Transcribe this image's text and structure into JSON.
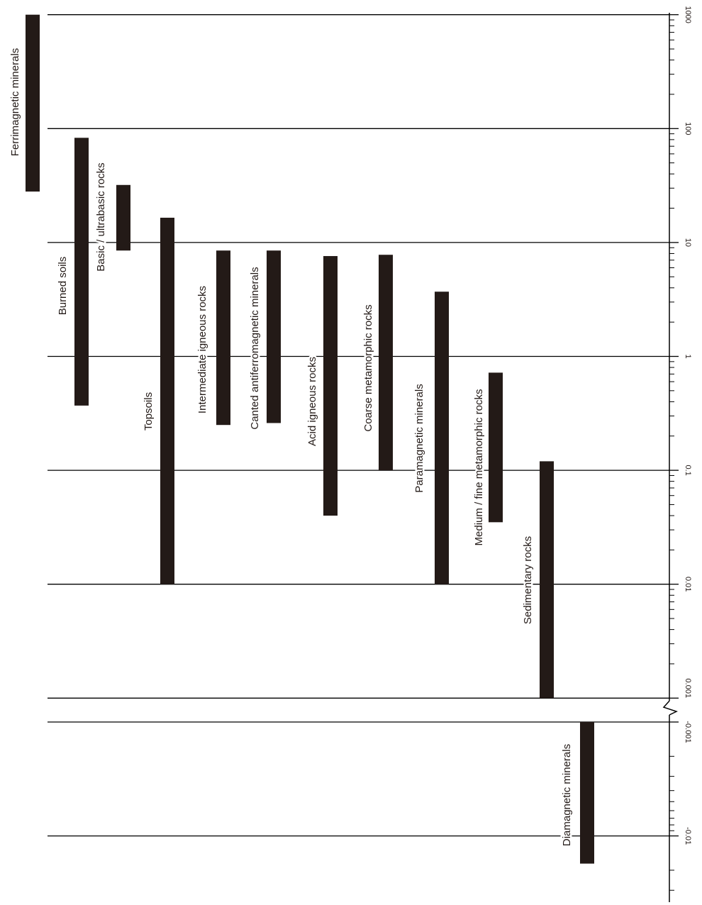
{
  "chart_data": {
    "type": "bar",
    "orientation": "rotated-90",
    "scale": "log",
    "grid": true,
    "bar_color": "#231a17",
    "line_color": "#000000",
    "positive_ticks": [
      {
        "value": 1000,
        "label": "1000"
      },
      {
        "value": 100,
        "label": "100"
      },
      {
        "value": 10,
        "label": "10"
      },
      {
        "value": 1,
        "label": "1"
      },
      {
        "value": 0.1,
        "label": "0.1"
      },
      {
        "value": 0.01,
        "label": "0.01"
      },
      {
        "value": 0.001,
        "label": "0.001"
      }
    ],
    "negative_ticks": [
      {
        "value": -0.001,
        "label": "-0.001"
      },
      {
        "value": -0.01,
        "label": "-0.01"
      }
    ],
    "axis_break": true,
    "series": [
      {
        "name": "Ferrimagnetic minerals",
        "min": 28,
        "max": 1000
      },
      {
        "name": "Burned soils",
        "min": 0.37,
        "max": 83
      },
      {
        "name": "Basic / ultrabasic rocks",
        "min": 8.5,
        "max": 32
      },
      {
        "name": "Topsoils",
        "min": 0.01,
        "max": 16.5
      },
      {
        "name": "Intermediate igneous rocks",
        "min": 0.25,
        "max": 8.5
      },
      {
        "name": "Canted antiferromagnetic minerals",
        "min": 0.26,
        "max": 8.5
      },
      {
        "name": "Acid igneous rocks",
        "min": 0.04,
        "max": 7.6
      },
      {
        "name": "Coarse metamorphic rocks",
        "min": 0.1,
        "max": 7.8
      },
      {
        "name": "Paramagnetic minerals",
        "min": 0.01,
        "max": 3.7
      },
      {
        "name": "Medium / fine metamorphic rocks",
        "min": 0.035,
        "max": 0.72
      },
      {
        "name": "Sedimentary rocks",
        "min": 0.001,
        "max": 0.12
      },
      {
        "name": "Diamagnetic minerals",
        "min": -0.0175,
        "max": -0.001
      }
    ]
  }
}
